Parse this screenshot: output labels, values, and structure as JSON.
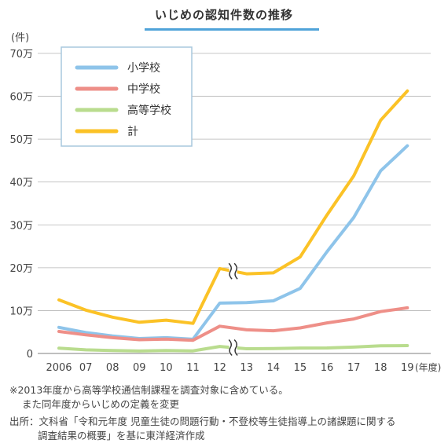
{
  "title": "いじめの認知件数の推移",
  "notes": {
    "line1": "※2013年度から高等学校通信制課程を調査対象に含めている。",
    "line2": "また同年度からいじめの定義を変更"
  },
  "source": {
    "line1": "出所：文科省「令和元年度 児童生徒の問題行動・不登校等生徒指導上の諸課題に関する",
    "line2": "調査結果の概要」を基に東洋経済作成"
  },
  "chart_data": {
    "type": "line",
    "title": "いじめの認知件数の推移",
    "y_unit": "(件)",
    "x_unit": "(年度)",
    "categories": [
      "2006",
      "07",
      "08",
      "09",
      "10",
      "11",
      "12",
      "13",
      "14",
      "15",
      "16",
      "17",
      "18",
      "19"
    ],
    "yticks": [
      "0",
      "10万",
      "20万",
      "30万",
      "40万",
      "50万",
      "60万",
      "70万"
    ],
    "ylim": [
      0,
      700000
    ],
    "grid": true,
    "legend_position": "top-left",
    "break_between": [
      "12",
      "13"
    ],
    "series": [
      {
        "name": "小学校",
        "color": "#8ec4ea",
        "values": [
          60897,
          48896,
          40807,
          34766,
          36909,
          33124,
          117384,
          118748,
          122734,
          151692,
          237256,
          317121,
          425844,
          484545
        ]
      },
      {
        "name": "中学校",
        "color": "#ee8f88",
        "values": [
          51310,
          43505,
          36795,
          32111,
          33323,
          30749,
          63634,
          55248,
          52971,
          59502,
          71309,
          80424,
          97704,
          106524
        ]
      },
      {
        "name": "高等学校",
        "color": "#b9dc8e",
        "values": [
          12307,
          8355,
          6737,
          5642,
          7018,
          6020,
          16274,
          11039,
          11404,
          12664,
          12874,
          14789,
          17709,
          18352
        ]
      },
      {
        "name": "計",
        "color": "#fbc226",
        "values": [
          124898,
          101097,
          84648,
          72778,
          77630,
          70231,
          198109,
          185803,
          188072,
          225132,
          323143,
          414378,
          543933,
          612496
        ]
      }
    ]
  }
}
